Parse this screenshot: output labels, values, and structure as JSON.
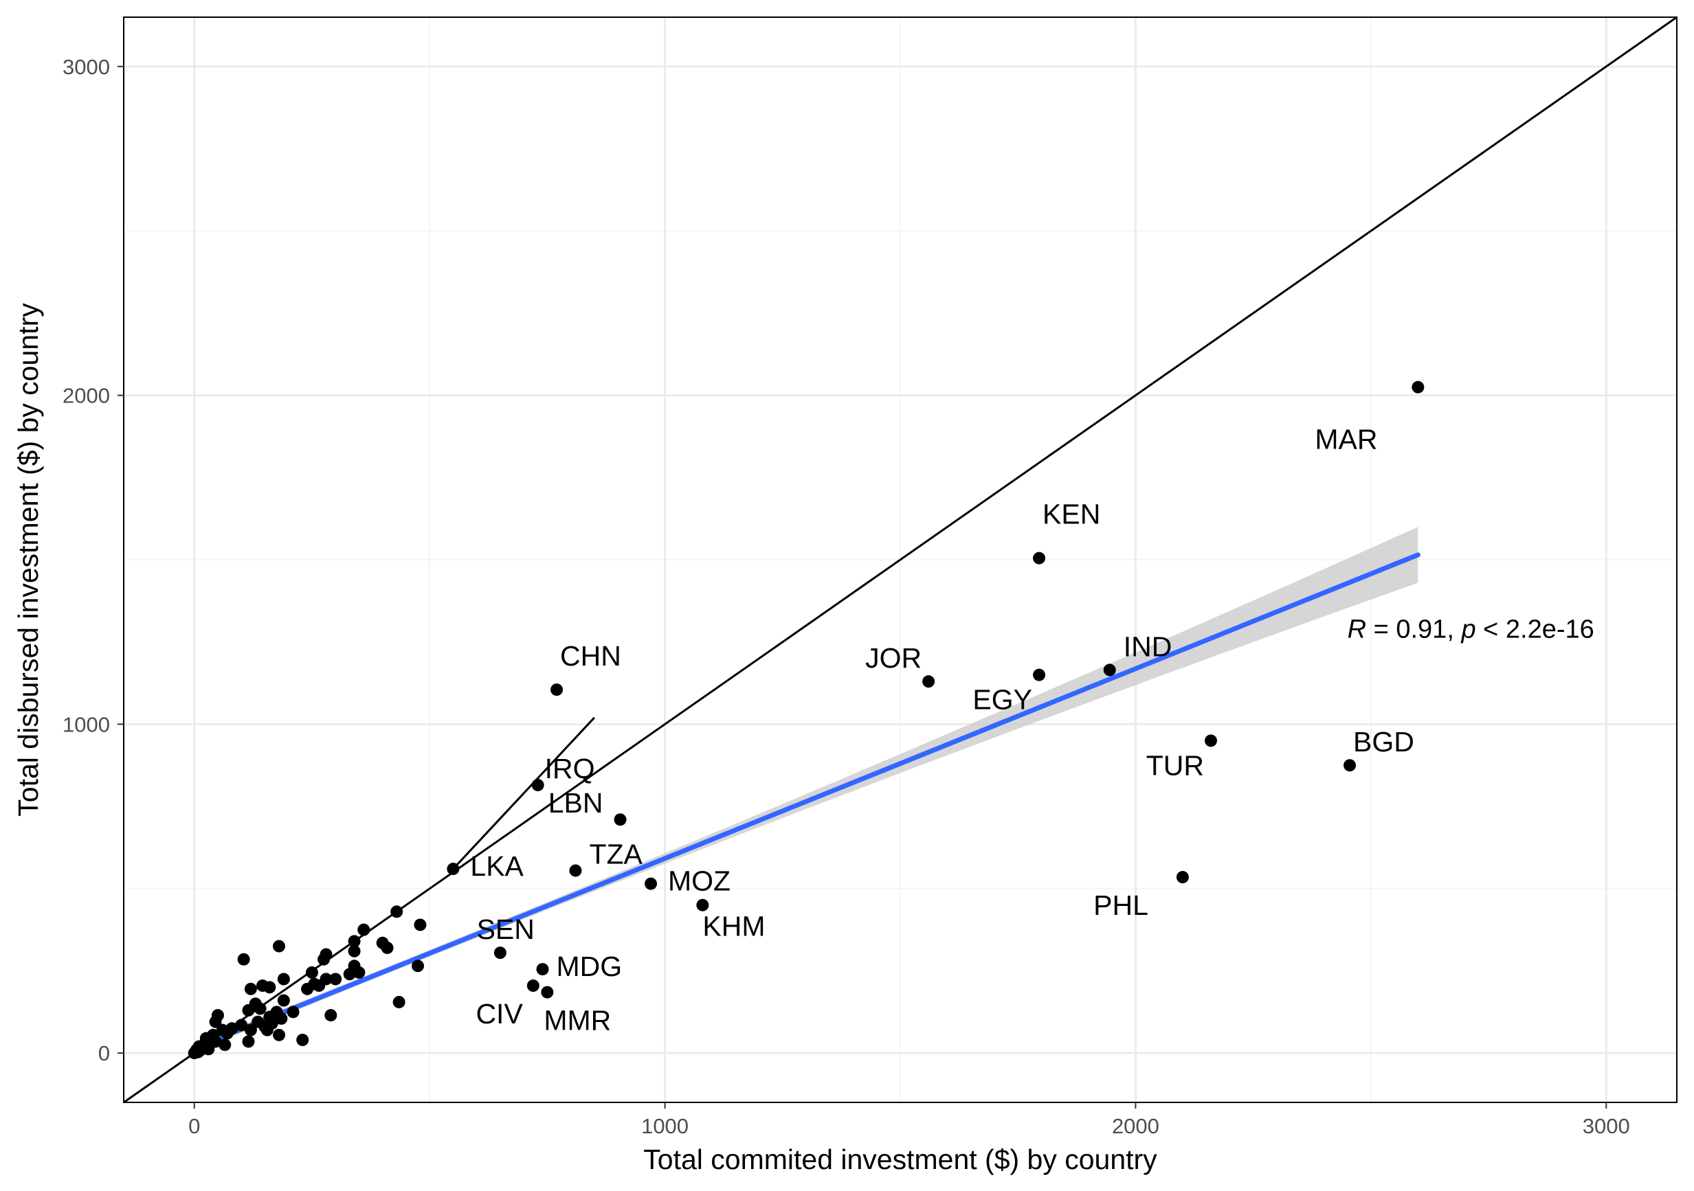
{
  "chart_data": {
    "type": "scatter",
    "title": "",
    "xlabel": "Total commited investment ($) by country",
    "ylabel": "Total disbursed investment ($) by country",
    "xlim": [
      -150,
      3150
    ],
    "ylim": [
      -150,
      3150
    ],
    "xticks": [
      0,
      1000,
      2000,
      3000
    ],
    "yticks": [
      0,
      1000,
      2000,
      3000
    ],
    "grid": true,
    "colors": {
      "points": "#000000",
      "fit_line": "#3366ff",
      "ci_band": "#c8c8c8",
      "grid_major": "#ebebeb",
      "grid_minor": "#f5f5f5"
    },
    "labeled_points": [
      {
        "label": "MAR",
        "x": 2600,
        "y": 2025,
        "anchor": "start",
        "dx": -150,
        "dy": 90
      },
      {
        "label": "KEN",
        "x": 1795,
        "y": 1505,
        "anchor": "start",
        "dx": 5,
        "dy": -50
      },
      {
        "label": "IND",
        "x": 1945,
        "y": 1165,
        "anchor": "start",
        "dx": 20,
        "dy": -20
      },
      {
        "label": "JOR",
        "x": 1560,
        "y": 1130,
        "anchor": "end",
        "dx": -10,
        "dy": -20
      },
      {
        "label": "EGY",
        "x": 1795,
        "y": 1150,
        "anchor": "end",
        "dx": -10,
        "dy": 50
      },
      {
        "label": "CHN",
        "x": 770,
        "y": 1105,
        "anchor": "start",
        "dx": 5,
        "dy": -35
      },
      {
        "label": "TUR",
        "x": 2160,
        "y": 950,
        "anchor": "end",
        "dx": -10,
        "dy": 50
      },
      {
        "label": "BGD",
        "x": 2455,
        "y": 875,
        "anchor": "start",
        "dx": 5,
        "dy": -20
      },
      {
        "label": "IRQ",
        "x": 730,
        "y": 815,
        "anchor": "start",
        "dx": 10,
        "dy": -10
      },
      {
        "label": "LBN",
        "x": 905,
        "y": 710,
        "anchor": "end",
        "dx": -25,
        "dy": -10
      },
      {
        "label": "LKA",
        "x": 550,
        "y": 560,
        "anchor": "start",
        "dx": 25,
        "dy": 10
      },
      {
        "label": "TZA",
        "x": 810,
        "y": 555,
        "anchor": "start",
        "dx": 20,
        "dy": -10
      },
      {
        "label": "MOZ",
        "x": 970,
        "y": 515,
        "anchor": "start",
        "dx": 25,
        "dy": 10
      },
      {
        "label": "PHL",
        "x": 2100,
        "y": 535,
        "anchor": "end",
        "dx": -50,
        "dy": 55
      },
      {
        "label": "KHM",
        "x": 1080,
        "y": 450,
        "anchor": "start",
        "dx": 0,
        "dy": 45
      },
      {
        "label": "SEN",
        "x": 650,
        "y": 305,
        "anchor": "end",
        "dx": 50,
        "dy": -20
      },
      {
        "label": "MDG",
        "x": 740,
        "y": 255,
        "anchor": "start",
        "dx": 20,
        "dy": 10
      },
      {
        "label": "CIV",
        "x": 720,
        "y": 205,
        "anchor": "end",
        "dx": -15,
        "dy": 55
      },
      {
        "label": "MMR",
        "x": 750,
        "y": 185,
        "anchor": "start",
        "dx": -5,
        "dy": 55
      }
    ],
    "points": [
      {
        "x": 430,
        "y": 430
      },
      {
        "x": 480,
        "y": 390
      },
      {
        "x": 360,
        "y": 375
      },
      {
        "x": 340,
        "y": 340
      },
      {
        "x": 400,
        "y": 335
      },
      {
        "x": 410,
        "y": 320
      },
      {
        "x": 340,
        "y": 310
      },
      {
        "x": 475,
        "y": 265
      },
      {
        "x": 340,
        "y": 265
      },
      {
        "x": 280,
        "y": 300
      },
      {
        "x": 275,
        "y": 285
      },
      {
        "x": 250,
        "y": 245
      },
      {
        "x": 280,
        "y": 225
      },
      {
        "x": 300,
        "y": 225
      },
      {
        "x": 255,
        "y": 210
      },
      {
        "x": 240,
        "y": 195
      },
      {
        "x": 350,
        "y": 245
      },
      {
        "x": 330,
        "y": 240
      },
      {
        "x": 180,
        "y": 325
      },
      {
        "x": 105,
        "y": 285
      },
      {
        "x": 190,
        "y": 225
      },
      {
        "x": 145,
        "y": 205
      },
      {
        "x": 160,
        "y": 200
      },
      {
        "x": 120,
        "y": 195
      },
      {
        "x": 265,
        "y": 205
      },
      {
        "x": 435,
        "y": 155
      },
      {
        "x": 290,
        "y": 115
      },
      {
        "x": 230,
        "y": 40
      },
      {
        "x": 180,
        "y": 55
      },
      {
        "x": 115,
        "y": 35
      },
      {
        "x": 190,
        "y": 160
      },
      {
        "x": 130,
        "y": 150
      },
      {
        "x": 140,
        "y": 135
      },
      {
        "x": 115,
        "y": 130
      },
      {
        "x": 175,
        "y": 125
      },
      {
        "x": 210,
        "y": 125
      },
      {
        "x": 160,
        "y": 110
      },
      {
        "x": 185,
        "y": 105
      },
      {
        "x": 135,
        "y": 95
      },
      {
        "x": 165,
        "y": 90
      },
      {
        "x": 150,
        "y": 80
      },
      {
        "x": 100,
        "y": 85
      },
      {
        "x": 80,
        "y": 75
      },
      {
        "x": 120,
        "y": 70
      },
      {
        "x": 155,
        "y": 70
      },
      {
        "x": 50,
        "y": 115
      },
      {
        "x": 45,
        "y": 95
      },
      {
        "x": 60,
        "y": 70
      },
      {
        "x": 70,
        "y": 60
      },
      {
        "x": 40,
        "y": 55
      },
      {
        "x": 25,
        "y": 45
      },
      {
        "x": 35,
        "y": 30
      },
      {
        "x": 65,
        "y": 25
      },
      {
        "x": 20,
        "y": 25
      },
      {
        "x": 15,
        "y": 15
      },
      {
        "x": 10,
        "y": 20
      },
      {
        "x": 5,
        "y": 10
      },
      {
        "x": 0,
        "y": 0
      },
      {
        "x": 3,
        "y": 5
      },
      {
        "x": 8,
        "y": 3
      },
      {
        "x": 12,
        "y": 8
      },
      {
        "x": 30,
        "y": 12
      },
      {
        "x": 45,
        "y": 35
      }
    ],
    "identity_line": {
      "from": [
        -150,
        -150
      ],
      "to": [
        3150,
        3150
      ]
    },
    "segments": [
      {
        "from": [
          550,
          560
        ],
        "to": [
          850,
          1020
        ]
      }
    ],
    "fit": {
      "x": [
        0,
        2600
      ],
      "y": [
        15,
        1515
      ],
      "ci_start": 10,
      "ci_end": 85
    },
    "annotation": {
      "r_label": "R",
      "rest": " = 0.91, ",
      "p_label": "p",
      "p_rest": " < 2.2e-16",
      "x": 2450,
      "y": 1290
    }
  }
}
